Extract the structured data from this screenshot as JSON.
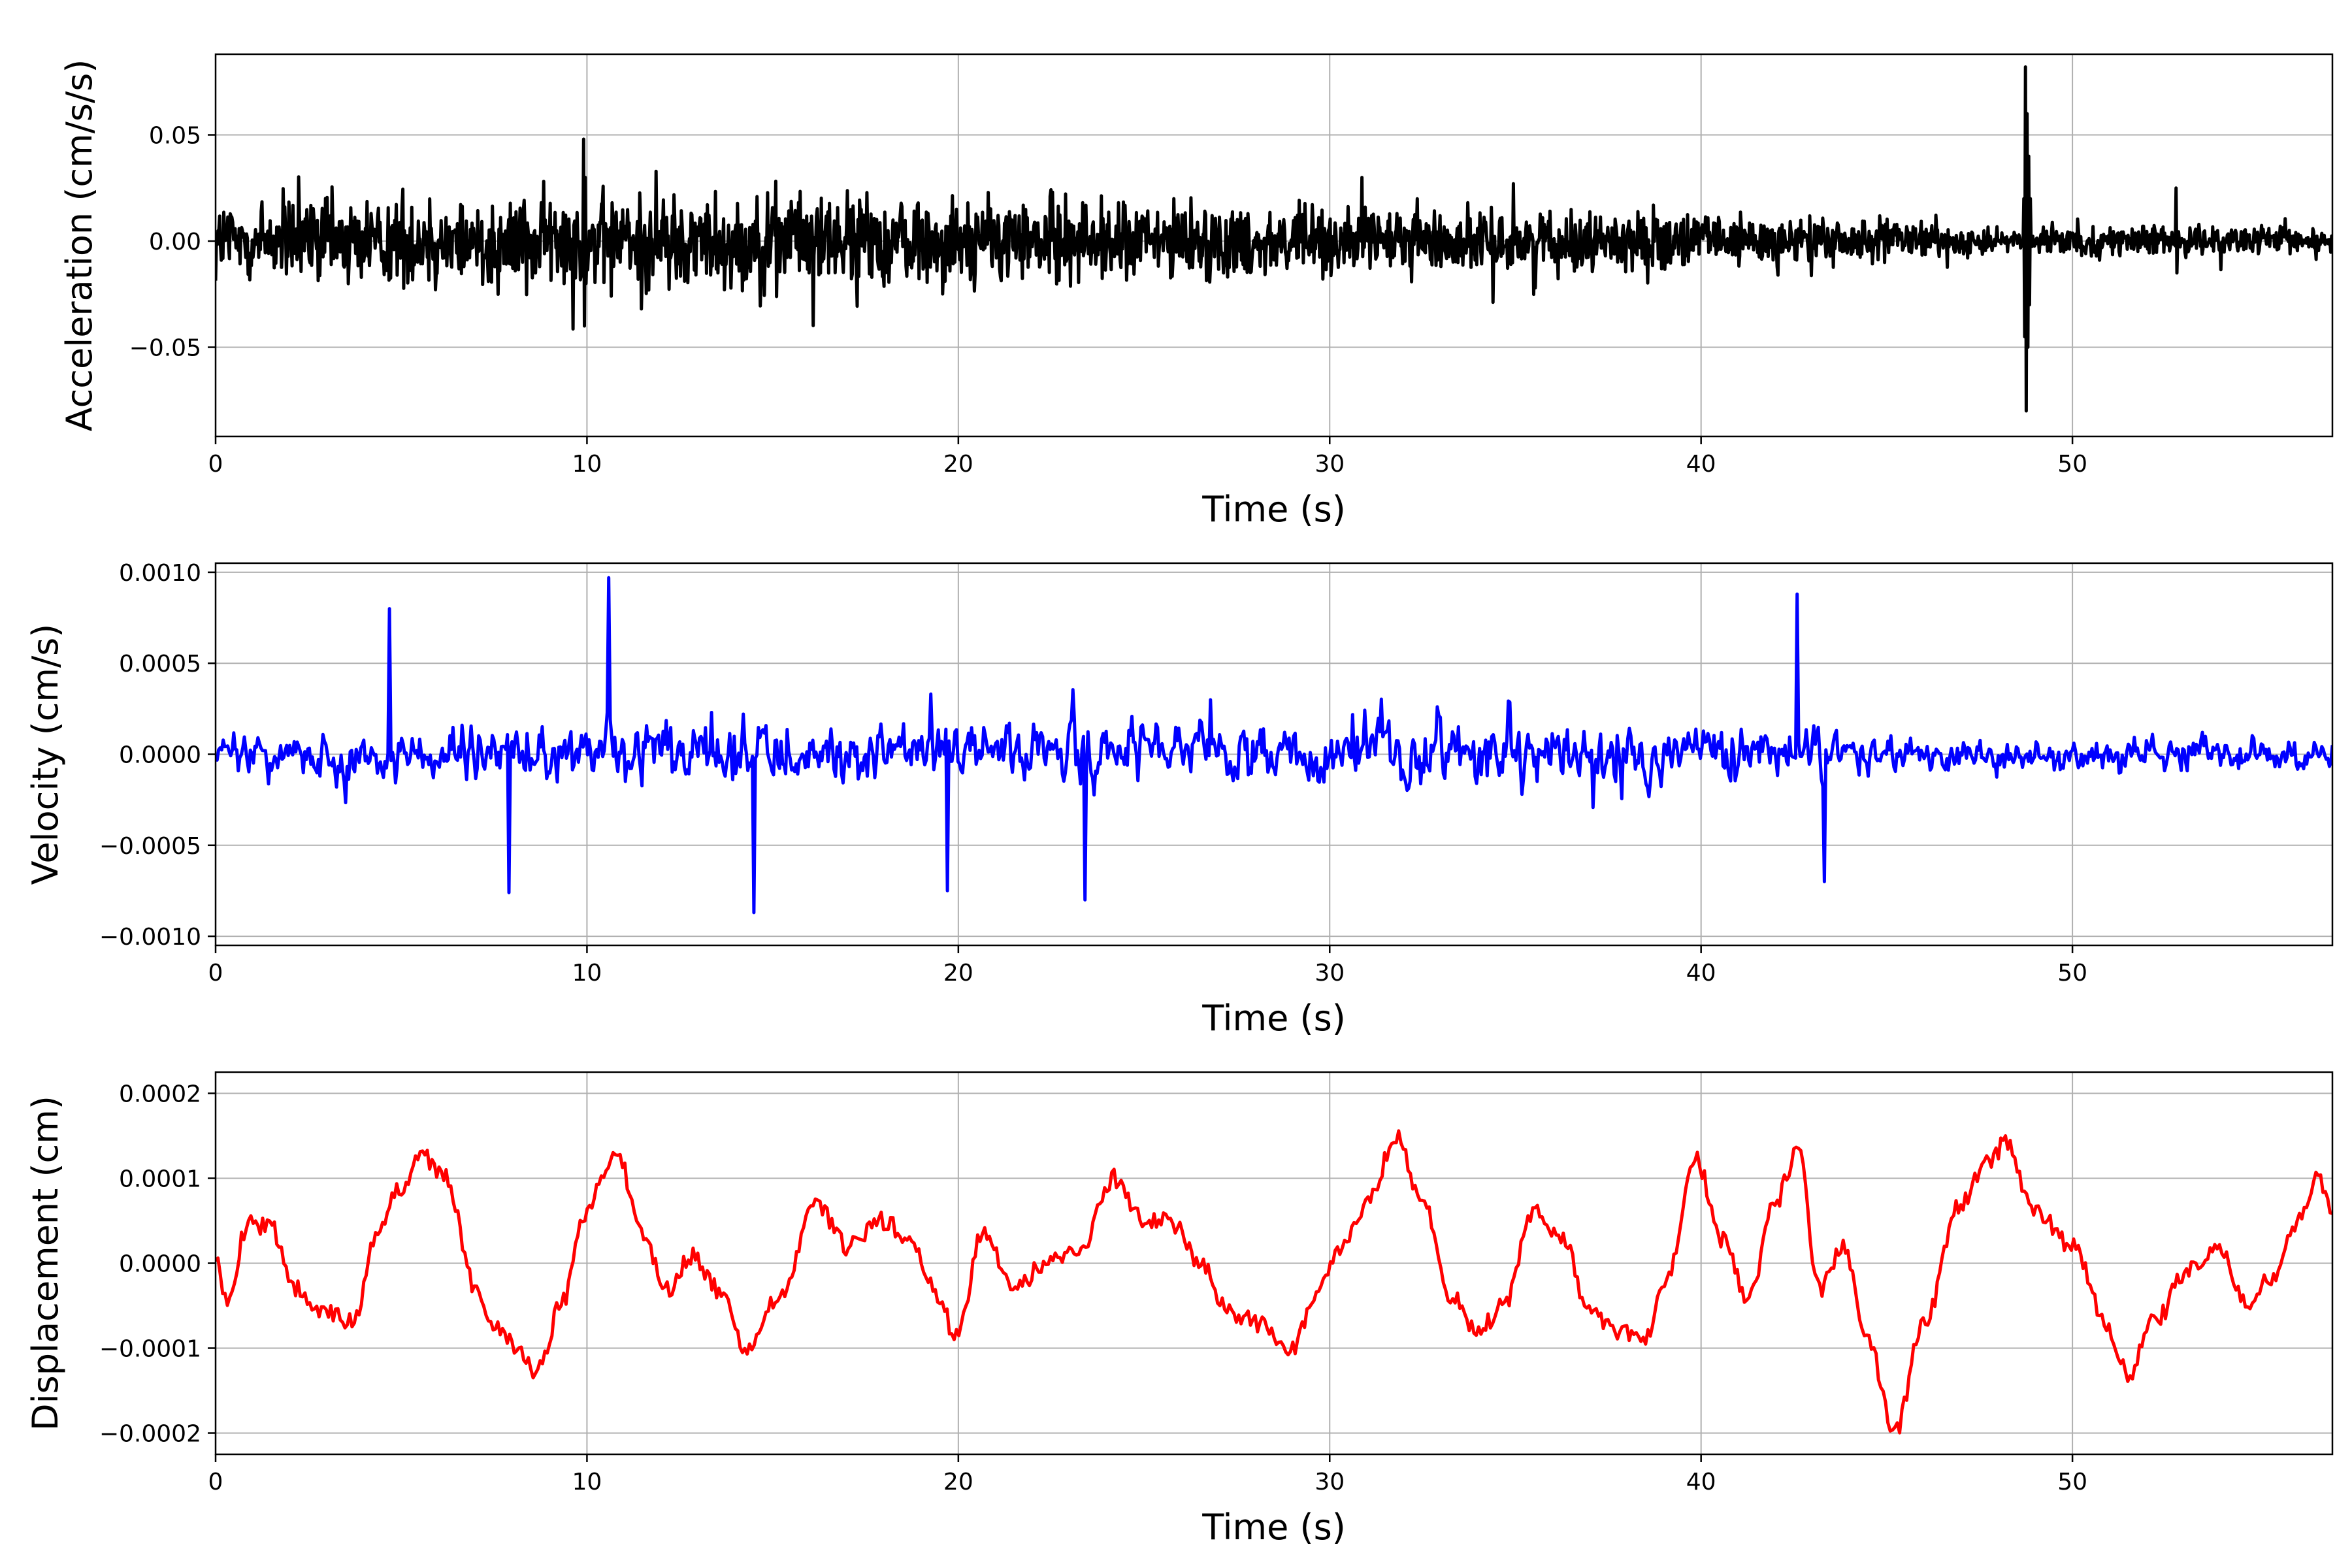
{
  "chart_data": [
    {
      "type": "line",
      "xlabel": "Time (s)",
      "ylabel": "Acceleration (cm/s/s)",
      "xlim": [
        0,
        57
      ],
      "ylim": [
        -0.092,
        0.088
      ],
      "xticks": [
        0,
        10,
        20,
        30,
        40,
        50
      ],
      "xtick_labels": [
        "0",
        "10",
        "20",
        "30",
        "40",
        "50"
      ],
      "yticks": [
        -0.05,
        0.0,
        0.05
      ],
      "ytick_labels": [
        "−0.05",
        "0.00",
        "0.05"
      ],
      "grid": true,
      "series": [
        {
          "color": "#000000",
          "signal": {
            "kind": "noise-with-spikes",
            "peak_amplitude": 0.032,
            "envelope": [
              [
                0,
                0.95
              ],
              [
                10,
                1.0
              ],
              [
                20,
                0.95
              ],
              [
                30,
                0.7
              ],
              [
                40,
                0.55
              ],
              [
                44,
                0.5
              ],
              [
                48,
                0.25
              ],
              [
                50,
                0.3
              ],
              [
                57,
                0.3
              ]
            ],
            "spikes": [
              {
                "x": 9.9,
                "values": [
                  0.048,
                  -0.04,
                  0.03,
                  -0.02
                ]
              },
              {
                "x": 48.7,
                "values": [
                  0.02,
                  -0.045,
                  0.082,
                  -0.08,
                  0.06,
                  -0.05,
                  0.04,
                  -0.03,
                  0.02
                ]
              },
              {
                "x": 52.8,
                "values": [
                  0.025,
                  -0.015
                ]
              }
            ],
            "sample_points": 2600
          }
        }
      ]
    },
    {
      "type": "line",
      "xlabel": "Time (s)",
      "ylabel": "Velocity (cm/s)",
      "xlim": [
        0,
        57
      ],
      "ylim": [
        -0.00105,
        0.00105
      ],
      "xticks": [
        0,
        10,
        20,
        30,
        40,
        50
      ],
      "xtick_labels": [
        "0",
        "10",
        "20",
        "30",
        "40",
        "50"
      ],
      "yticks": [
        -0.001,
        -0.0005,
        0.0,
        0.0005,
        0.001
      ],
      "ytick_labels": [
        "−0.0010",
        "−0.0005",
        "0.0000",
        "0.0005",
        "0.0010"
      ],
      "grid": true,
      "series": [
        {
          "color": "#0000ff",
          "signal": {
            "kind": "noise",
            "peak_amplitude": 0.00038,
            "envelope": [
              [
                0,
                0.75
              ],
              [
                10,
                1.0
              ],
              [
                20,
                1.0
              ],
              [
                30,
                0.95
              ],
              [
                42,
                1.0
              ],
              [
                45,
                0.6
              ],
              [
                57,
                0.55
              ]
            ],
            "peaks": [
              [
                10.6,
                0.00097
              ],
              [
                42.6,
                0.00088
              ],
              [
                4.7,
                0.0008
              ],
              [
                14.5,
                -0.00087
              ],
              [
                23.4,
                -0.0008
              ],
              [
                7.9,
                -0.00076
              ],
              [
                19.7,
                -0.00075
              ],
              [
                43.3,
                -0.0007
              ]
            ],
            "sample_points": 1400
          }
        }
      ]
    },
    {
      "type": "line",
      "xlabel": "Time (s)",
      "ylabel": "Displacement (cm)",
      "xlim": [
        0,
        57
      ],
      "ylim": [
        -0.000225,
        0.000225
      ],
      "xticks": [
        0,
        10,
        20,
        30,
        40,
        50
      ],
      "xtick_labels": [
        "0",
        "10",
        "20",
        "30",
        "40",
        "50"
      ],
      "yticks": [
        -0.0002,
        -0.0001,
        0.0,
        0.0001,
        0.0002
      ],
      "ytick_labels": [
        "−0.0002",
        "−0.0001",
        "0.0000",
        "0.0001",
        "0.0002"
      ],
      "grid": true,
      "series": [
        {
          "color": "#ff0000",
          "x": [
            0,
            0.3,
            0.9,
            1.5,
            2.2,
            3.0,
            3.7,
            4.3,
            5.0,
            5.5,
            6.2,
            7.0,
            7.5,
            8.2,
            8.6,
            9.4,
            9.9,
            10.8,
            11.5,
            12.2,
            12.8,
            13.5,
            14.3,
            15.2,
            16.2,
            17.0,
            18.0,
            18.6,
            19.5,
            19.9,
            20.7,
            21.5,
            22.4,
            23.3,
            24.2,
            25.0,
            25.7,
            26.5,
            27.3,
            28.1,
            29.0,
            29.6,
            30.2,
            31.0,
            31.8,
            32.5,
            33.3,
            34.0,
            34.7,
            35.5,
            36.3,
            37.0,
            37.7,
            38.5,
            39.0,
            39.9,
            40.5,
            41.3,
            41.9,
            42.6,
            43.2,
            43.8,
            44.5,
            45.2,
            46.0,
            47.0,
            47.7,
            48.2,
            49.0,
            50.0,
            51.0,
            51.5,
            52.2,
            53.1,
            53.9,
            54.7,
            55.3,
            56.1,
            56.6,
            57.0
          ],
          "values": [
            0.0,
            -4e-05,
            5e-05,
            4e-05,
            -3e-05,
            -6e-05,
            -7e-05,
            3e-05,
            9e-05,
            0.00013,
            0.0001,
            -3e-05,
            -7e-05,
            -0.0001,
            -0.00013,
            -4e-05,
            6e-05,
            0.00013,
            3e-05,
            -3e-05,
            1e-05,
            -3e-05,
            -0.0001,
            -4e-05,
            7e-05,
            2e-05,
            5e-05,
            3e-05,
            -4e-05,
            -9e-05,
            4e-05,
            -3e-05,
            0.0,
            2e-05,
            0.0001,
            5e-05,
            5e-05,
            0.0,
            -6e-05,
            -7e-05,
            -0.0001,
            -4e-05,
            1e-05,
            7e-05,
            0.00015,
            7e-05,
            -4e-05,
            -8e-05,
            -5e-05,
            6e-05,
            3e-05,
            -6e-05,
            -8e-05,
            -9e-05,
            -2e-05,
            0.00012,
            3e-05,
            -4e-05,
            6e-05,
            0.00013,
            -3e-05,
            2e-05,
            -9e-05,
            -0.0002,
            -7e-05,
            7e-05,
            0.00012,
            0.00014,
            6e-05,
            2e-05,
            -8e-05,
            -0.00013,
            -7e-05,
            -1e-05,
            2e-05,
            -5e-05,
            -2e-05,
            5e-05,
            0.0001,
            6e-05
          ]
        }
      ]
    }
  ]
}
